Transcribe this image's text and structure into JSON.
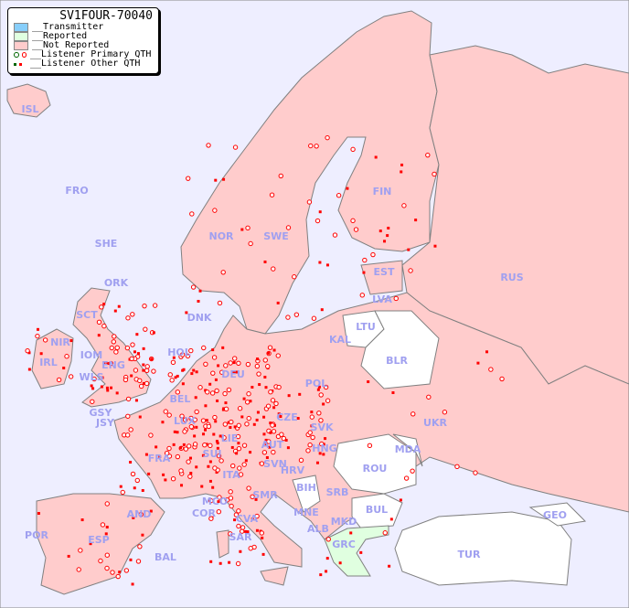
{
  "legend": {
    "title": "SV1FOUR-70040",
    "items": [
      {
        "label": "__Transmitter",
        "color": "#87cefa"
      },
      {
        "label": "__Reported",
        "color": "#e0ffe0"
      },
      {
        "label": "__Not Reported",
        "color": "#ffcccc"
      },
      {
        "label": "__Listener Primary QTH",
        "marker": "circle",
        "colors": [
          "#006400",
          "#ff0000"
        ]
      },
      {
        "label": "__Listener Other QTH",
        "marker": "square",
        "colors": [
          "#006400",
          "#ff0000"
        ]
      }
    ]
  },
  "colors": {
    "sea": "#eeeeff",
    "not_reported": "#ffcccc",
    "reported": "#e0ffe0",
    "no_data": "#ffffff",
    "border": "#808080",
    "listener": "#ff0000",
    "label": "#a0a0f0"
  },
  "countries": [
    "ISL",
    "FRO",
    "SHE",
    "ORK",
    "SCT",
    "NIR",
    "IRL",
    "IOM",
    "ENG",
    "WLS",
    "GSY",
    "JSY",
    "NOR",
    "SWE",
    "FIN",
    "EST",
    "LVA",
    "LTU",
    "KAL",
    "RUS",
    "BLR",
    "DNK",
    "HOL",
    "BEL",
    "LUX",
    "DEU",
    "POL",
    "CZE",
    "SVK",
    "AUT",
    "LIE",
    "SUI",
    "FRA",
    "ITA",
    "SVN",
    "HRV",
    "BIH",
    "SMR",
    "MCO",
    "COR",
    "CVA",
    "SAR",
    "AND",
    "ESP",
    "POR",
    "BAL",
    "HNG",
    "SRB",
    "MNE",
    "ALB",
    "MKD",
    "GRC",
    "BUL",
    "ROU",
    "MDA",
    "UKR",
    "TUR",
    "GEO"
  ],
  "reported_countries": [
    "GRC"
  ],
  "no_data_countries": [
    "LTU",
    "BLR",
    "ROU",
    "BUL",
    "MDA",
    "BIH",
    "TUR",
    "GEO",
    "MKD",
    "KAL"
  ]
}
